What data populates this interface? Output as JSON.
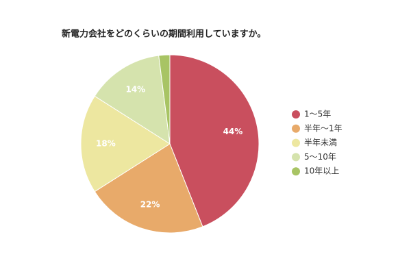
{
  "chart_data": {
    "type": "pie",
    "title": "新電力会社をどのくらいの期間利用していますか。",
    "categories": [
      "1〜5年",
      "半年〜1年",
      "半年未満",
      "5〜10年",
      "10年以上"
    ],
    "values": [
      44,
      22,
      18,
      14,
      2
    ],
    "value_labels": [
      "44%",
      "22%",
      "18%",
      "14%",
      null
    ],
    "colors": [
      "#c94f5e",
      "#e8aa6a",
      "#ede7a0",
      "#d5e3ad",
      "#a8c464"
    ],
    "legend": "right"
  }
}
